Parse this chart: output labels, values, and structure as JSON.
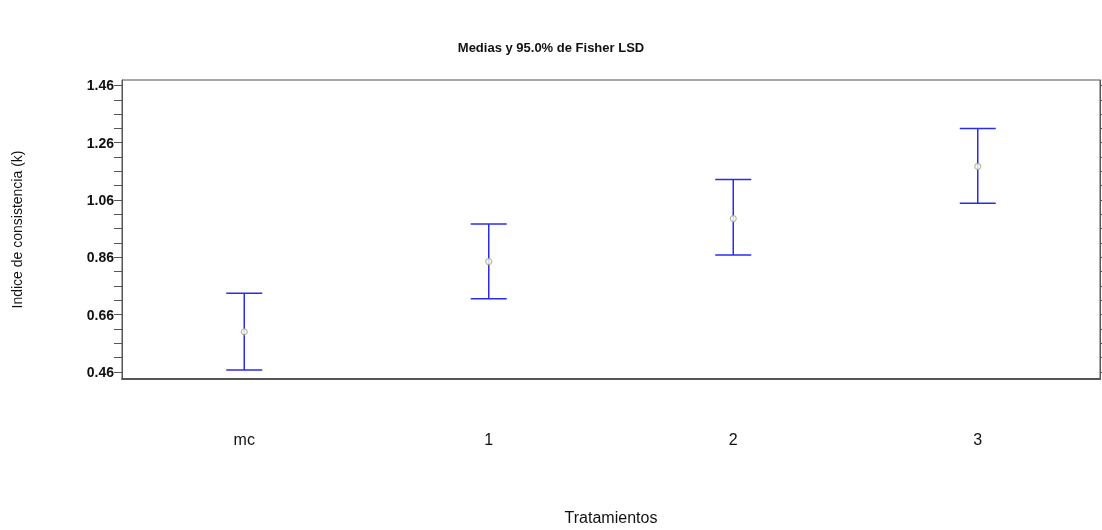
{
  "chart_data": {
    "type": "scatter",
    "title": "Medias y 95.0% de Fisher LSD",
    "xlabel": "Tratamientos",
    "ylabel": "Indice de consistencia (k)",
    "categories": [
      "mc",
      "1",
      "2",
      "3"
    ],
    "series": [
      {
        "color": "#a8a878",
        "values": [
          0.6,
          0.845,
          0.995,
          1.177
        ],
        "errors": [
          [
            0.466,
            0.734
          ],
          [
            0.715,
            0.976
          ],
          [
            0.868,
            1.132
          ],
          [
            1.049,
            1.31
          ]
        ]
      }
    ],
    "ylim": [
      0.435,
      1.479
    ],
    "yticks": [
      0.46,
      {
        "value": 0.51,
        "label": null
      },
      {
        "value": 0.56,
        "label": null
      },
      {
        "value": 0.61,
        "label": null
      },
      0.66,
      {
        "value": 0.71,
        "label": null
      },
      {
        "value": 0.76,
        "label": null
      },
      {
        "value": 0.81,
        "label": null
      },
      0.86,
      {
        "value": 0.91,
        "label": null
      },
      {
        "value": 0.96,
        "label": null
      },
      {
        "value": 1.01,
        "label": null
      },
      1.06,
      {
        "value": 1.11,
        "label": null
      },
      {
        "value": 1.16,
        "label": null
      },
      {
        "value": 1.21,
        "label": null
      },
      1.26,
      {
        "value": 1.31,
        "label": null
      },
      {
        "value": 1.36,
        "label": null
      },
      {
        "value": 1.41,
        "label": null
      },
      1.46
    ],
    "grid": false,
    "marker": "circle"
  }
}
